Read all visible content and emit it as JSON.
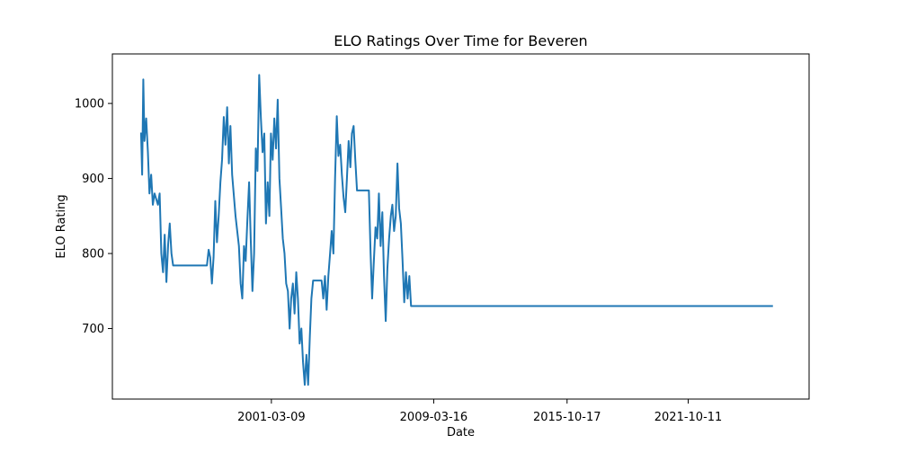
{
  "chart_data": {
    "type": "line",
    "title": "ELO Ratings Over Time for Beveren",
    "xlabel": "Date",
    "ylabel": "ELO Rating",
    "x_ticks": [
      "2001-03-09",
      "2009-03-16",
      "2015-10-17",
      "2021-10-11"
    ],
    "y_ticks": [
      700,
      800,
      900,
      1000
    ],
    "xlim": [
      "1993-05-01",
      "2027-10-01"
    ],
    "ylim": [
      606,
      1066
    ],
    "grid": false,
    "legend": "none",
    "colors": {
      "line": "#1f77b4",
      "axes": "#000000",
      "background": "#ffffff"
    },
    "series": [
      {
        "points": [
          [
            "1994-10-01",
            960
          ],
          [
            "1994-10-20",
            905
          ],
          [
            "1994-11-10",
            1032
          ],
          [
            "1994-12-01",
            950
          ],
          [
            "1995-01-01",
            980
          ],
          [
            "1995-02-01",
            935
          ],
          [
            "1995-03-01",
            880
          ],
          [
            "1995-04-01",
            905
          ],
          [
            "1995-05-01",
            865
          ],
          [
            "1995-06-01",
            880
          ],
          [
            "1995-08-01",
            865
          ],
          [
            "1995-09-01",
            880
          ],
          [
            "1995-10-01",
            800
          ],
          [
            "1995-11-01",
            775
          ],
          [
            "1995-12-01",
            825
          ],
          [
            "1996-01-01",
            762
          ],
          [
            "1996-02-01",
            812
          ],
          [
            "1996-03-01",
            840
          ],
          [
            "1996-04-01",
            800
          ],
          [
            "1996-05-01",
            784
          ],
          [
            "1998-01-01",
            784
          ],
          [
            "1998-02-01",
            805
          ],
          [
            "1998-03-01",
            795
          ],
          [
            "1998-04-01",
            760
          ],
          [
            "1998-05-01",
            795
          ],
          [
            "1998-06-01",
            870
          ],
          [
            "1998-07-01",
            815
          ],
          [
            "1998-08-01",
            850
          ],
          [
            "1998-09-01",
            895
          ],
          [
            "1998-10-01",
            925
          ],
          [
            "1998-11-01",
            982
          ],
          [
            "1998-12-01",
            945
          ],
          [
            "1999-01-01",
            995
          ],
          [
            "1999-02-01",
            920
          ],
          [
            "1999-03-01",
            970
          ],
          [
            "1999-04-01",
            905
          ],
          [
            "1999-06-01",
            850
          ],
          [
            "1999-08-01",
            810
          ],
          [
            "1999-09-01",
            760
          ],
          [
            "1999-10-01",
            740
          ],
          [
            "1999-11-01",
            810
          ],
          [
            "1999-12-01",
            790
          ],
          [
            "2000-01-01",
            845
          ],
          [
            "2000-02-01",
            895
          ],
          [
            "2000-03-01",
            820
          ],
          [
            "2000-04-01",
            750
          ],
          [
            "2000-05-01",
            800
          ],
          [
            "2000-06-01",
            940
          ],
          [
            "2000-07-01",
            910
          ],
          [
            "2000-08-01",
            1038
          ],
          [
            "2000-09-01",
            980
          ],
          [
            "2000-10-01",
            935
          ],
          [
            "2000-11-01",
            960
          ],
          [
            "2000-12-01",
            840
          ],
          [
            "2001-01-01",
            895
          ],
          [
            "2001-02-01",
            850
          ],
          [
            "2001-03-01",
            960
          ],
          [
            "2001-04-01",
            925
          ],
          [
            "2001-05-01",
            980
          ],
          [
            "2001-06-01",
            940
          ],
          [
            "2001-07-01",
            1005
          ],
          [
            "2001-08-01",
            900
          ],
          [
            "2001-09-01",
            860
          ],
          [
            "2001-10-01",
            820
          ],
          [
            "2001-11-01",
            800
          ],
          [
            "2001-12-01",
            760
          ],
          [
            "2002-01-01",
            750
          ],
          [
            "2002-02-01",
            700
          ],
          [
            "2002-03-01",
            740
          ],
          [
            "2002-04-01",
            760
          ],
          [
            "2002-05-01",
            720
          ],
          [
            "2002-06-01",
            775
          ],
          [
            "2002-07-01",
            740
          ],
          [
            "2002-08-01",
            680
          ],
          [
            "2002-09-01",
            700
          ],
          [
            "2002-10-01",
            655
          ],
          [
            "2002-11-01",
            625
          ],
          [
            "2002-12-01",
            665
          ],
          [
            "2003-01-01",
            625
          ],
          [
            "2003-02-01",
            690
          ],
          [
            "2003-03-01",
            740
          ],
          [
            "2003-04-01",
            764
          ],
          [
            "2003-09-01",
            764
          ],
          [
            "2003-10-01",
            740
          ],
          [
            "2003-11-01",
            770
          ],
          [
            "2003-12-01",
            725
          ],
          [
            "2004-01-01",
            770
          ],
          [
            "2004-02-01",
            800
          ],
          [
            "2004-03-01",
            830
          ],
          [
            "2004-04-01",
            800
          ],
          [
            "2004-05-01",
            900
          ],
          [
            "2004-06-01",
            983
          ],
          [
            "2004-07-01",
            930
          ],
          [
            "2004-08-01",
            945
          ],
          [
            "2004-09-01",
            905
          ],
          [
            "2004-10-01",
            875
          ],
          [
            "2004-11-01",
            855
          ],
          [
            "2004-12-01",
            900
          ],
          [
            "2005-01-01",
            950
          ],
          [
            "2005-02-01",
            915
          ],
          [
            "2005-03-01",
            960
          ],
          [
            "2005-04-01",
            970
          ],
          [
            "2005-05-01",
            925
          ],
          [
            "2005-06-01",
            884
          ],
          [
            "2006-01-01",
            884
          ],
          [
            "2006-02-01",
            800
          ],
          [
            "2006-03-01",
            740
          ],
          [
            "2006-04-01",
            790
          ],
          [
            "2006-05-01",
            835
          ],
          [
            "2006-06-01",
            820
          ],
          [
            "2006-07-01",
            880
          ],
          [
            "2006-08-01",
            810
          ],
          [
            "2006-09-01",
            855
          ],
          [
            "2006-10-01",
            770
          ],
          [
            "2006-11-01",
            710
          ],
          [
            "2006-12-01",
            780
          ],
          [
            "2007-01-01",
            820
          ],
          [
            "2007-02-01",
            850
          ],
          [
            "2007-03-01",
            865
          ],
          [
            "2007-04-01",
            830
          ],
          [
            "2007-05-01",
            850
          ],
          [
            "2007-06-01",
            920
          ],
          [
            "2007-07-01",
            860
          ],
          [
            "2007-08-01",
            840
          ],
          [
            "2007-09-01",
            790
          ],
          [
            "2007-10-01",
            735
          ],
          [
            "2007-11-01",
            775
          ],
          [
            "2007-12-01",
            740
          ],
          [
            "2008-01-01",
            770
          ],
          [
            "2008-02-01",
            730
          ],
          [
            "2025-12-01",
            730
          ]
        ]
      }
    ]
  }
}
